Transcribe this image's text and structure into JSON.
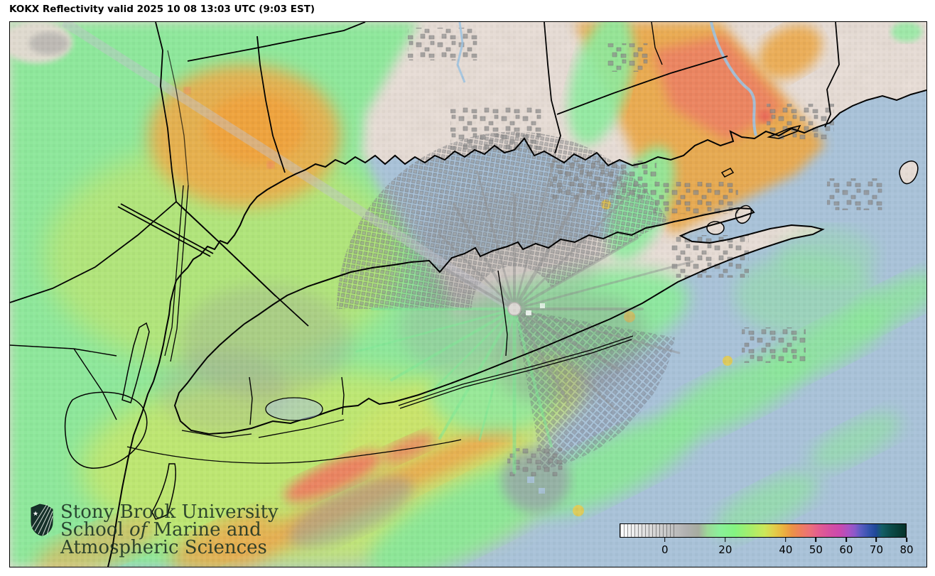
{
  "header": {
    "title": "KOKX Reflectivity valid 2025 10 08 13:03 UTC (9:03 EST)"
  },
  "branding": {
    "line1": "Stony Brook University",
    "line2_pre": "School",
    "line2_italic": "of",
    "line2_post": "Marine and",
    "line3": "Atmospheric Sciences"
  },
  "colorbar": {
    "min": -15,
    "max": 80,
    "ticks": [
      0,
      20,
      40,
      50,
      60,
      70,
      80
    ],
    "hatch_end_value": 4,
    "stops": [
      [
        -15,
        "#ffffff"
      ],
      [
        -8,
        "#e4e4e4"
      ],
      [
        0,
        "#cacaca"
      ],
      [
        7,
        "#b0b0b0"
      ],
      [
        11,
        "#a6aca0"
      ],
      [
        14,
        "#9cd898"
      ],
      [
        18,
        "#8af09a"
      ],
      [
        23,
        "#84f582"
      ],
      [
        28,
        "#a4ee6c"
      ],
      [
        33,
        "#cbe85a"
      ],
      [
        36,
        "#e0cf4b"
      ],
      [
        39,
        "#eab540"
      ],
      [
        42,
        "#ec9346"
      ],
      [
        45,
        "#ee7f5e"
      ],
      [
        48,
        "#ec7179"
      ],
      [
        51,
        "#e35d90"
      ],
      [
        55,
        "#d44fa3"
      ],
      [
        58,
        "#cb49ae"
      ],
      [
        61,
        "#a953c5"
      ],
      [
        63,
        "#8b58ca"
      ],
      [
        65,
        "#5a5cc2"
      ],
      [
        68,
        "#3052ab"
      ],
      [
        70,
        "#1f4898"
      ],
      [
        72,
        "#135e66"
      ],
      [
        75,
        "#0b4b49"
      ],
      [
        78,
        "#073c35"
      ],
      [
        80,
        "#06322a"
      ]
    ]
  },
  "map": {
    "colors": {
      "water": "#a9c2d8",
      "terrain": "#e9dfd8",
      "echo_green": "#8ce89a",
      "echo_yellow_green": "#c3e66e",
      "echo_orange": "#edab4a",
      "echo_salmon": "#ee8063",
      "clutter_gray": "#9a9a9a",
      "coastline": "#000000",
      "river": "#9fc3e0"
    }
  }
}
